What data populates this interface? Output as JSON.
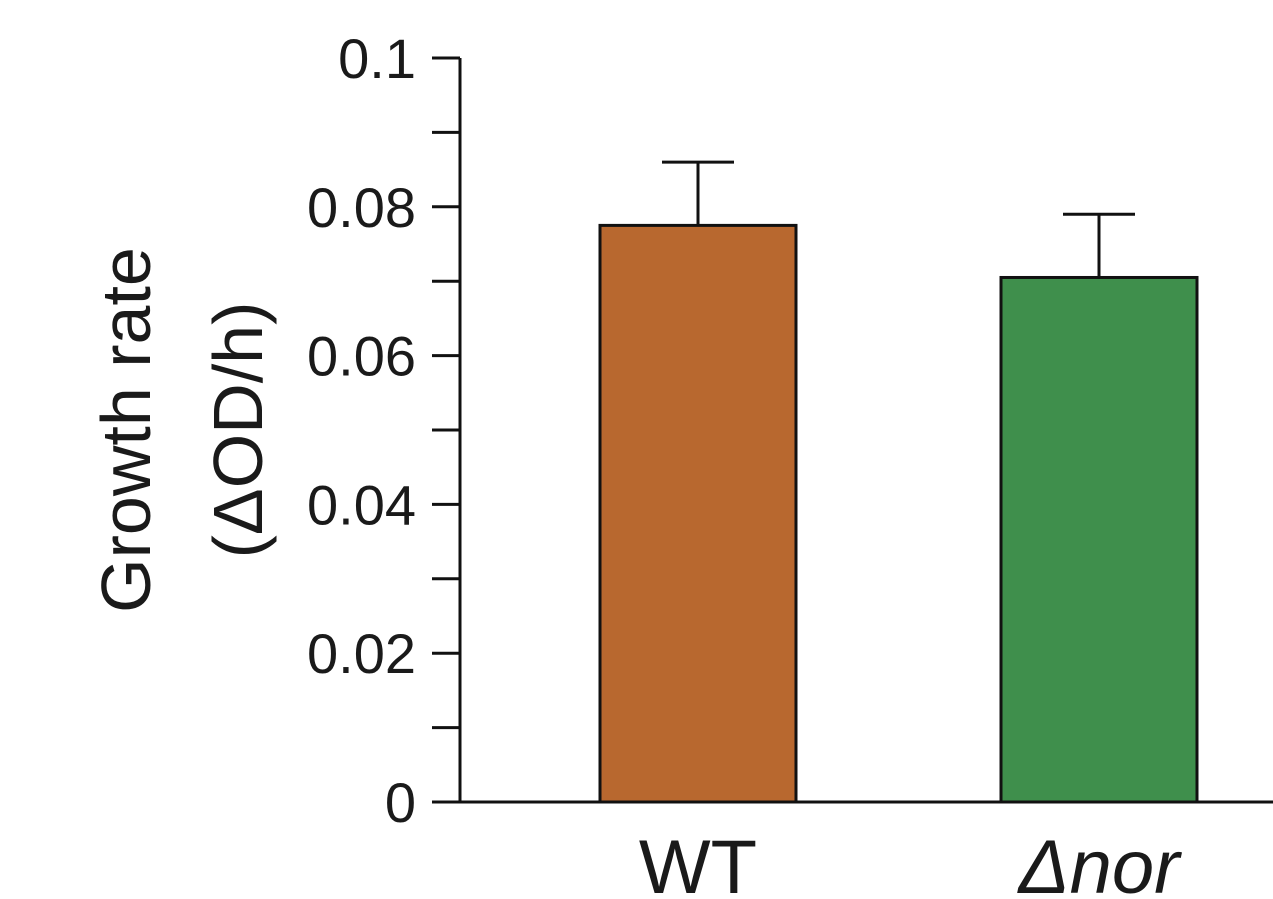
{
  "chart_data": {
    "type": "bar",
    "categories": [
      "WT",
      "Δnor"
    ],
    "values": [
      0.0775,
      0.0705
    ],
    "errors": [
      0.0085,
      0.0085
    ],
    "colors": [
      "#b8682f",
      "#3f8f4c"
    ],
    "ylabel_line1": "Growth rate",
    "ylabel_line2": "(ΔOD/h)",
    "ylim": [
      0,
      0.1
    ],
    "yticks": [
      0,
      0.02,
      0.04,
      0.06,
      0.08,
      0.1
    ],
    "ytick_labels": [
      "0",
      "0.02",
      "0.04",
      "0.06",
      "0.08",
      "0.1"
    ],
    "minor_ticks": [
      0.01,
      0.03,
      0.05,
      0.07,
      0.09
    ],
    "grid": false,
    "legend": "none"
  }
}
